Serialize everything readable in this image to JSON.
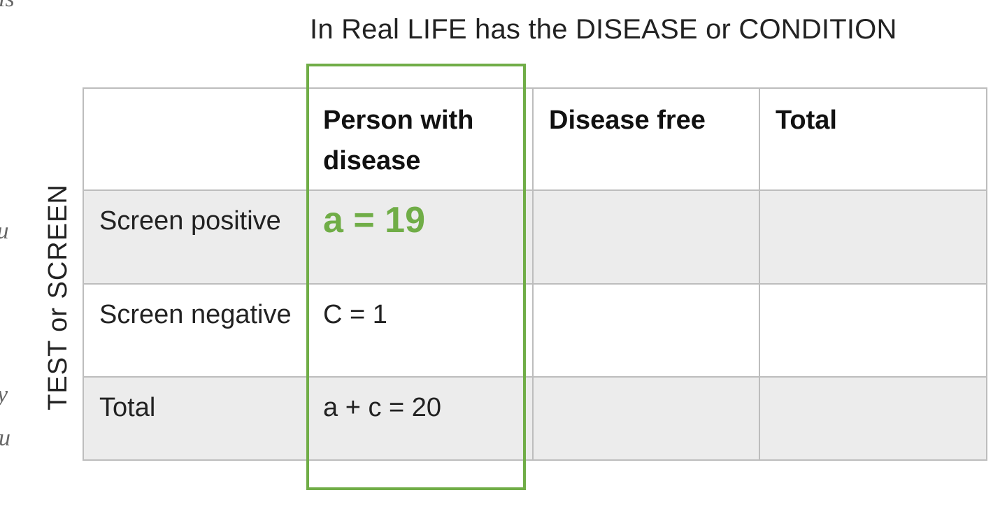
{
  "heading": "In Real LIFE has the DISEASE or CONDITION",
  "side_label": "TEST or SCREEN",
  "edge_fragments": [
    "ıs",
    "lu",
    "y",
    "u"
  ],
  "table": {
    "columns": [
      "",
      "Person with disease",
      "Disease free",
      "Total"
    ],
    "rows": [
      {
        "label": "Screen positive",
        "cells": [
          "a  = 19",
          "",
          ""
        ]
      },
      {
        "label": "Screen negative",
        "cells": [
          "C = 1",
          "",
          ""
        ]
      },
      {
        "label": "Total",
        "cells": [
          "a + c  = 20",
          "",
          ""
        ]
      }
    ]
  },
  "colors": {
    "highlight": "#70ad47",
    "shaded_row": "#ececec",
    "grid": "#bdbdbd"
  }
}
